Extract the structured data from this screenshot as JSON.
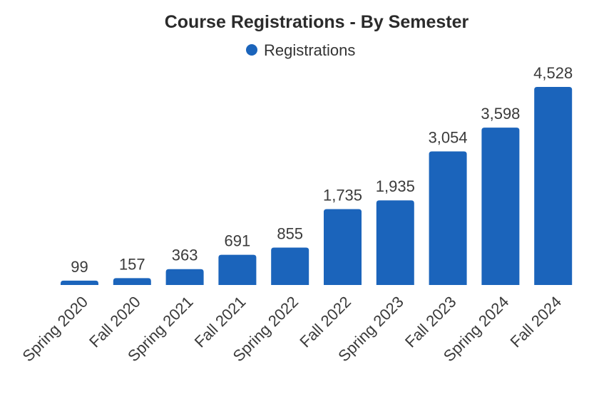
{
  "chart_data": {
    "type": "bar",
    "title": "Course Registrations - By Semester",
    "xlabel": "",
    "ylabel": "",
    "categories": [
      "Spring 2020",
      "Fall 2020",
      "Spring 2021",
      "Fall 2021",
      "Spring 2022",
      "Fall 2022",
      "Spring 2023",
      "Fall 2023",
      "Spring 2024",
      "Fall 2024"
    ],
    "series": [
      {
        "name": "Registrations",
        "values": [
          99,
          157,
          363,
          691,
          855,
          1735,
          1935,
          3054,
          3598,
          4528
        ],
        "labels": [
          "99",
          "157",
          "363",
          "691",
          "855",
          "1,735",
          "1,935",
          "3,054",
          "3,598",
          "4,528"
        ],
        "color": "#1b64bb"
      }
    ],
    "ylim": [
      0,
      4528
    ],
    "grid": false,
    "legend_position": "top-center"
  }
}
